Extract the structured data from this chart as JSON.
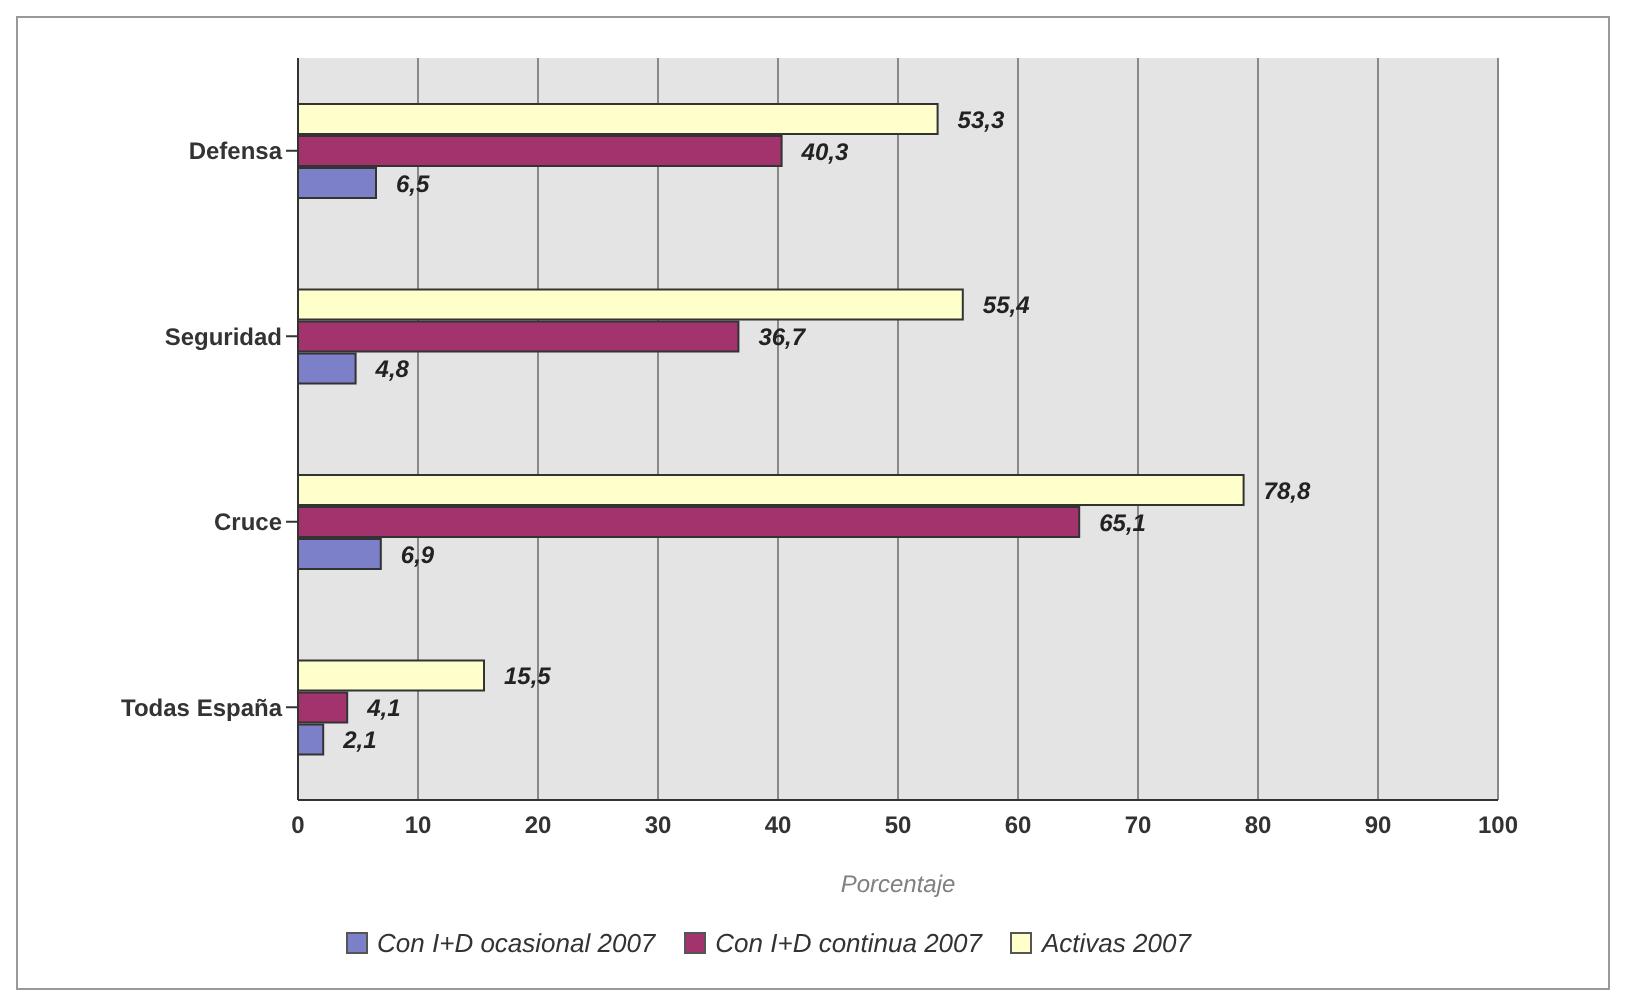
{
  "chart_data": {
    "type": "bar",
    "orientation": "horizontal",
    "categories": [
      "Defensa",
      "Seguridad",
      "Cruce",
      "Todas España"
    ],
    "series": [
      {
        "name": "Con I+D ocasional 2007",
        "color": "#7b80c8",
        "values": [
          6.5,
          4.8,
          6.9,
          2.1
        ],
        "value_labels": [
          "6,5",
          "4,8",
          "6,9",
          "2,1"
        ]
      },
      {
        "name": "Con I+D continua 2007",
        "color": "#a3336c",
        "values": [
          40.3,
          36.7,
          65.1,
          4.1
        ],
        "value_labels": [
          "40,3",
          "36,7",
          "65,1",
          "4,1"
        ]
      },
      {
        "name": "Activas 2007",
        "color": "#ffffcc",
        "values": [
          53.3,
          55.4,
          78.8,
          15.5
        ],
        "value_labels": [
          "53,3",
          "55,4",
          "78,8",
          "15,5"
        ]
      }
    ],
    "xlim": [
      0,
      100
    ],
    "xticks": [
      0,
      10,
      20,
      30,
      40,
      50,
      60,
      70,
      80,
      90,
      100
    ],
    "xlabel": "Porcentaje",
    "grid": "x",
    "legend": "bottom"
  }
}
